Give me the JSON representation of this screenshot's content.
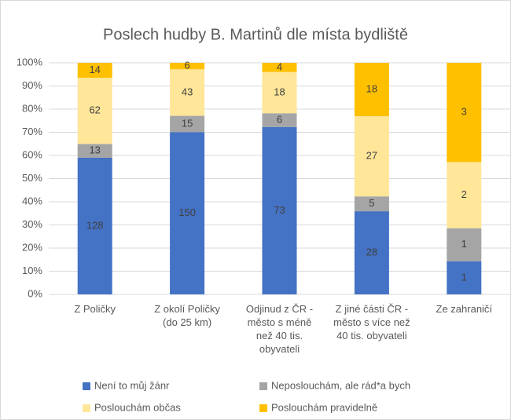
{
  "chart_data": {
    "type": "bar",
    "stacking": "percent",
    "title": "Poslech hudby B. Martinů dle místa bydliště",
    "categories": [
      "Z Poličky",
      "Z okolí Poličky (do 25 km)",
      "Odjinud z ČR - město s méně než 40 tis. obyvateli",
      "Z jiné části ČR - město s více než 40 tis. obyvateli",
      "Ze zahraničí"
    ],
    "series": [
      {
        "name": "Není to můj žánr",
        "color": "#4472c4",
        "values": [
          128,
          150,
          73,
          28,
          1
        ]
      },
      {
        "name": "Neposlouchám, ale rád*a bych",
        "color": "#a5a5a5",
        "values": [
          13,
          15,
          6,
          5,
          1
        ]
      },
      {
        "name": "Poslouchám občas",
        "color": "#ffe699",
        "values": [
          62,
          43,
          18,
          27,
          2
        ]
      },
      {
        "name": "Poslouchám pravidelně",
        "color": "#ffc000",
        "values": [
          14,
          6,
          4,
          18,
          3
        ]
      }
    ],
    "ylim": [
      0,
      100
    ],
    "yticks": [
      {
        "value": 0,
        "label": "0%"
      },
      {
        "value": 10,
        "label": "10%"
      },
      {
        "value": 20,
        "label": "20%"
      },
      {
        "value": 30,
        "label": "30%"
      },
      {
        "value": 40,
        "label": "40%"
      },
      {
        "value": 50,
        "label": "50%"
      },
      {
        "value": 60,
        "label": "60%"
      },
      {
        "value": 70,
        "label": "70%"
      },
      {
        "value": 80,
        "label": "80%"
      },
      {
        "value": 90,
        "label": "90%"
      },
      {
        "value": 100,
        "label": "100%"
      }
    ],
    "grid": true,
    "legend": "bottom"
  }
}
